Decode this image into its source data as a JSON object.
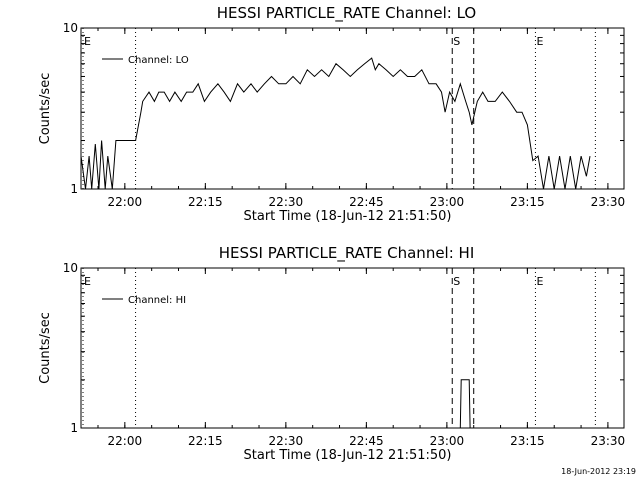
{
  "timestamp": "18-Jun-2012 23:19",
  "chart_data": [
    {
      "type": "line",
      "title": "HESSI PARTICLE_RATE Channel: LO",
      "xlabel": "Start Time (18-Jun-12 21:51:50)",
      "ylabel": "Counts/sec",
      "yscale": "log",
      "ylim": [
        1,
        10
      ],
      "xlim": [
        "21:51:50",
        "23:33:00"
      ],
      "x_ticks": [
        "22:00",
        "22:15",
        "22:30",
        "22:45",
        "23:00",
        "23:15",
        "23:30"
      ],
      "y_ticks": [
        "1",
        "10"
      ],
      "legend": "top-left",
      "series": [
        {
          "name": "Channel: LO",
          "color": "#000000",
          "x": [
            "21:51:50",
            "21:52:40",
            "21:53:20",
            "21:53:50",
            "21:54:30",
            "21:55:10",
            "21:55:40",
            "21:56:20",
            "21:56:50",
            "21:57:40",
            "21:58:20",
            "22:02:00",
            "22:03:00",
            "22:03:20",
            "22:04:30",
            "22:05:30",
            "22:06:20",
            "22:07:20",
            "22:08:20",
            "22:09:20",
            "22:10:30",
            "22:11:30",
            "22:12:40",
            "22:13:40",
            "22:14:50",
            "22:16:00",
            "22:17:20",
            "22:18:30",
            "22:19:40",
            "22:21:00",
            "22:22:10",
            "22:23:30",
            "22:24:40",
            "22:26:00",
            "22:27:20",
            "22:28:40",
            "22:30:00",
            "22:31:20",
            "22:32:40",
            "22:34:00",
            "22:35:20",
            "22:36:40",
            "22:38:00",
            "22:39:20",
            "22:40:40",
            "22:42:00",
            "22:43:20",
            "22:44:40",
            "22:46:00",
            "22:46:40",
            "22:47:20",
            "22:48:40",
            "22:50:00",
            "22:51:20",
            "22:52:40",
            "22:54:00",
            "22:55:20",
            "22:56:40",
            "22:58:00",
            "22:59:00",
            "22:59:40",
            "23:00:30",
            "23:01:30",
            "23:02:30",
            "23:03:30",
            "23:04:10",
            "23:04:40",
            "23:05:40",
            "23:06:40",
            "23:07:40",
            "23:09:00",
            "23:10:20",
            "23:11:40",
            "23:13:00",
            "23:14:00",
            "23:15:00",
            "23:16:00",
            "23:17:00",
            "23:18:00",
            "23:19:00",
            "23:20:00",
            "23:21:00",
            "23:22:00",
            "23:23:00",
            "23:24:00",
            "23:25:00",
            "23:26:00",
            "23:26:40"
          ],
          "y": [
            1.6,
            1,
            1.6,
            1,
            1.9,
            1,
            2,
            1,
            1.6,
            1,
            2,
            2,
            3,
            3.5,
            4,
            3.5,
            4,
            4,
            3.5,
            4,
            3.5,
            4,
            4,
            4.5,
            3.5,
            4,
            4.5,
            4,
            3.5,
            4.5,
            4,
            4.5,
            4,
            4.5,
            5,
            4.5,
            4.5,
            5,
            4.5,
            5.5,
            5,
            5.5,
            5,
            6,
            5.5,
            5,
            5.5,
            6,
            6.5,
            5.5,
            6,
            5.5,
            5,
            5.5,
            5,
            5,
            5.5,
            4.5,
            4.5,
            4,
            3,
            4,
            3.5,
            4.5,
            3.5,
            3,
            2.5,
            3.5,
            4,
            3.5,
            3.5,
            4,
            3.5,
            3,
            3,
            2.5,
            1.5,
            1.6,
            1,
            1.6,
            1,
            1.6,
            1,
            1.6,
            1,
            1.6,
            1.2,
            1.6
          ]
        }
      ],
      "annotations": [
        {
          "label": "E",
          "x": "21:51:50",
          "style": "dotted"
        },
        {
          "label": "",
          "x": "22:02:00",
          "style": "dotted"
        },
        {
          "label": "S",
          "x": "23:01:00",
          "style": "dashed"
        },
        {
          "label": "",
          "x": "23:05:00",
          "style": "dashed"
        },
        {
          "label": "E",
          "x": "23:16:30",
          "style": "dotted"
        },
        {
          "label": "",
          "x": "23:27:40",
          "style": "dotted"
        }
      ]
    },
    {
      "type": "line",
      "title": "HESSI PARTICLE_RATE Channel: HI",
      "xlabel": "Start Time (18-Jun-12 21:51:50)",
      "ylabel": "Counts/sec",
      "yscale": "log",
      "ylim": [
        1,
        10
      ],
      "xlim": [
        "21:51:50",
        "23:33:00"
      ],
      "x_ticks": [
        "22:00",
        "22:15",
        "22:30",
        "22:45",
        "23:00",
        "23:15",
        "23:30"
      ],
      "y_ticks": [
        "1",
        "10"
      ],
      "legend": "top-left",
      "series": [
        {
          "name": "Channel: HI",
          "color": "#000000",
          "x": [
            "23:01:30",
            "23:02:30",
            "23:02:40",
            "23:04:10",
            "23:04:20",
            "23:05:00"
          ],
          "y": [
            1,
            1,
            2,
            2,
            1,
            1
          ]
        }
      ],
      "annotations": [
        {
          "label": "E",
          "x": "21:51:50",
          "style": "dotted"
        },
        {
          "label": "",
          "x": "22:02:00",
          "style": "dotted"
        },
        {
          "label": "S",
          "x": "23:01:00",
          "style": "dashed"
        },
        {
          "label": "",
          "x": "23:05:00",
          "style": "dashed"
        },
        {
          "label": "E",
          "x": "23:16:30",
          "style": "dotted"
        },
        {
          "label": "",
          "x": "23:27:40",
          "style": "dotted"
        }
      ]
    }
  ]
}
